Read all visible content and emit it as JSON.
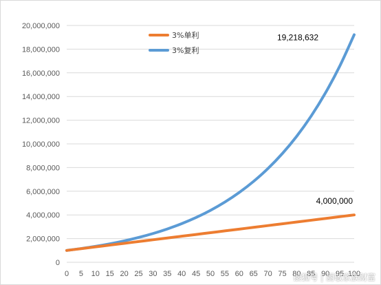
{
  "chart_data": {
    "type": "line",
    "title": "",
    "xlabel": "",
    "ylabel": "",
    "x": [
      0,
      5,
      10,
      15,
      20,
      25,
      30,
      35,
      40,
      45,
      50,
      55,
      60,
      65,
      70,
      75,
      80,
      85,
      90,
      95,
      100
    ],
    "xlim": [
      0,
      100
    ],
    "ylim": [
      0,
      20000000
    ],
    "y_ticks": [
      "0",
      "2,000,000",
      "4,000,000",
      "6,000,000",
      "8,000,000",
      "10,000,000",
      "12,000,000",
      "14,000,000",
      "16,000,000",
      "18,000,000",
      "20,000,000"
    ],
    "x_ticks": [
      "0",
      "5",
      "10",
      "15",
      "20",
      "25",
      "30",
      "35",
      "40",
      "45",
      "50",
      "55",
      "60",
      "65",
      "70",
      "75",
      "80",
      "85",
      "90",
      "95",
      "100"
    ],
    "grid": "horizontal",
    "legend_position": "top",
    "series": [
      {
        "name": "3%单利",
        "color": "#ED7D31",
        "values": [
          1000000,
          1150000,
          1300000,
          1450000,
          1600000,
          1750000,
          1900000,
          2050000,
          2200000,
          2350000,
          2500000,
          2650000,
          2800000,
          2950000,
          3100000,
          3250000,
          3400000,
          3550000,
          3700000,
          3850000,
          4000000
        ]
      },
      {
        "name": "3%复利",
        "color": "#5B9BD5",
        "values": [
          1000000,
          1159274,
          1343916,
          1557967,
          1806111,
          2093778,
          2427262,
          2813862,
          3262038,
          3781596,
          4383906,
          5082149,
          5891603,
          6829998,
          7917822,
          9178926,
          10640891,
          12335709,
          14300467,
          16578161,
          19218632
        ]
      }
    ],
    "annotations": [
      {
        "text": "19,218,632",
        "series": 1,
        "x": 100
      },
      {
        "text": "4,000,000",
        "series": 0,
        "x": 100
      }
    ]
  },
  "watermark": "搜狐号 | 丽敬家族财富"
}
